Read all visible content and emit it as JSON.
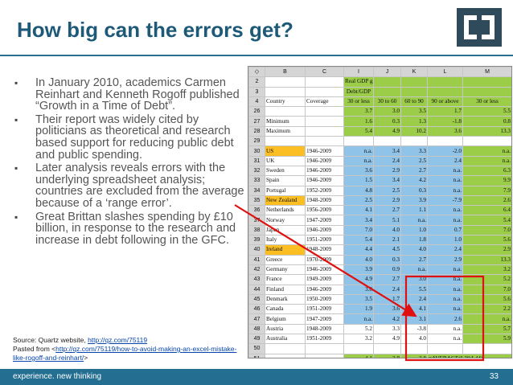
{
  "slide": {
    "title": "How big can the errors get?",
    "bullets": [
      "In January 2010, academics Carmen Reinhart and Kenneth Rogoff published “Growth in a Time of Debt”.",
      "Their report was widely cited by politicians as theoretical and research based support for reducing public debt and public spending.",
      "Later analysis reveals errors with the underlying spreadsheet analysis; countries are excluded from the average because of a ‘range error’.",
      "Great Brittan slashes spending by £10 billion, in response to the research and increase in debt following in the GFC."
    ],
    "source_line1": "Source:  Quartz website, ",
    "source_link1": "http://qz.com/75119",
    "source_line2": "Pasted from <",
    "source_link2": "http://qz.com/75119/how-to-avoid-making-an-excel-mistake-like-rogoff-and-reinhart/",
    "source_end": ">",
    "footer_tagline": "experience. new thinking",
    "page_number": "33",
    "colors": {
      "title": "#1e5a78",
      "footer": "#236e91",
      "green": "#9ccd48",
      "blue": "#8fc3e8",
      "orange": "#fbbf23",
      "red": "#e01010"
    }
  },
  "spreadsheet": {
    "col_headers": [
      "◇",
      "B",
      "C",
      "I",
      "J",
      "K",
      "L",
      "M"
    ],
    "header_rows": [
      {
        "row": "2",
        "cells": [
          "",
          "",
          "Real GDP growth",
          "",
          "",
          "",
          ""
        ]
      },
      {
        "row": "3",
        "cells": [
          "",
          "",
          "Debt/GDP",
          "",
          "",
          "",
          ""
        ]
      },
      {
        "row": "4",
        "cells": [
          "Country",
          "Coverage",
          "30 or less",
          "30 to 60",
          "60 to 90",
          "90 or above",
          "30 or less"
        ]
      }
    ],
    "stat_rows": [
      {
        "row": "26",
        "label": "",
        "i": "3.7",
        "j": "3.0",
        "k": "3.5",
        "l": "1.7",
        "m": "5.5"
      },
      {
        "row": "27",
        "label": "Minimum",
        "i": "1.6",
        "j": "0.3",
        "k": "1.3",
        "l": "-1.8",
        "m": "0.8"
      },
      {
        "row": "28",
        "label": "Maximum",
        "i": "5.4",
        "j": "4.9",
        "k": "10.2",
        "l": "3.6",
        "m": "13.3"
      },
      {
        "row": "29",
        "label": "",
        "i": "",
        "j": "",
        "k": "",
        "l": "",
        "m": ""
      }
    ],
    "country_rows": [
      {
        "row": "30",
        "country": "US",
        "coverage": "1946-2009",
        "i": "n.a.",
        "j": "3.4",
        "k": "3.3",
        "l": "-2.0",
        "m": "n.a.",
        "hl": true
      },
      {
        "row": "31",
        "country": "UK",
        "coverage": "1946-2009",
        "i": "n.a.",
        "j": "2.4",
        "k": "2.5",
        "l": "2.4",
        "m": "n.a.",
        "hl": false
      },
      {
        "row": "32",
        "country": "Sweden",
        "coverage": "1946-2009",
        "i": "3.6",
        "j": "2.9",
        "k": "2.7",
        "l": "n.a.",
        "m": "6.3",
        "hl": false
      },
      {
        "row": "33",
        "country": "Spain",
        "coverage": "1946-2009",
        "i": "1.5",
        "j": "3.4",
        "k": "4.2",
        "l": "n.a.",
        "m": "9.9",
        "hl": false
      },
      {
        "row": "34",
        "country": "Portugal",
        "coverage": "1952-2009",
        "i": "4.8",
        "j": "2.5",
        "k": "0.3",
        "l": "n.a.",
        "m": "7.9",
        "hl": false
      },
      {
        "row": "35",
        "country": "New Zealand",
        "coverage": "1948-2009",
        "i": "2.5",
        "j": "2.9",
        "k": "3.9",
        "l": "-7.9",
        "m": "2.6",
        "hl": true
      },
      {
        "row": "36",
        "country": "Netherlands",
        "coverage": "1956-2009",
        "i": "4.1",
        "j": "2.7",
        "k": "1.1",
        "l": "n.a.",
        "m": "6.4",
        "hl": false
      },
      {
        "row": "37",
        "country": "Norway",
        "coverage": "1947-2009",
        "i": "3.4",
        "j": "5.1",
        "k": "n.a.",
        "l": "n.a.",
        "m": "5.4",
        "hl": false
      },
      {
        "row": "38",
        "country": "Japan",
        "coverage": "1946-2009",
        "i": "7.0",
        "j": "4.0",
        "k": "1.0",
        "l": "0.7",
        "m": "7.0",
        "hl": false
      },
      {
        "row": "39",
        "country": "Italy",
        "coverage": "1951-2009",
        "i": "5.4",
        "j": "2.1",
        "k": "1.8",
        "l": "1.0",
        "m": "5.6",
        "hl": false
      },
      {
        "row": "40",
        "country": "Ireland",
        "coverage": "1948-2009",
        "i": "4.4",
        "j": "4.5",
        "k": "4.0",
        "l": "2.4",
        "m": "2.9",
        "hl": true
      },
      {
        "row": "41",
        "country": "Greece",
        "coverage": "1970-2009",
        "i": "4.0",
        "j": "0.3",
        "k": "2.7",
        "l": "2.9",
        "m": "13.3",
        "hl": false
      },
      {
        "row": "42",
        "country": "Germany",
        "coverage": "1946-2009",
        "i": "3.9",
        "j": "0.9",
        "k": "n.a.",
        "l": "n.a.",
        "m": "3.2",
        "hl": false
      },
      {
        "row": "43",
        "country": "France",
        "coverage": "1949-2009",
        "i": "4.9",
        "j": "2.7",
        "k": "3.0",
        "l": "n.a.",
        "m": "5.2",
        "hl": false
      },
      {
        "row": "44",
        "country": "Finland",
        "coverage": "1946-2009",
        "i": "3.8",
        "j": "2.4",
        "k": "5.5",
        "l": "n.a.",
        "m": "7.0",
        "hl": false
      },
      {
        "row": "45",
        "country": "Denmark",
        "coverage": "1950-2009",
        "i": "3.5",
        "j": "1.7",
        "k": "2.4",
        "l": "n.a.",
        "m": "5.6",
        "hl": false
      },
      {
        "row": "46",
        "country": "Canada",
        "coverage": "1951-2009",
        "i": "1.9",
        "j": "3.6",
        "k": "4.1",
        "l": "n.a.",
        "m": "2.2",
        "hl": false
      },
      {
        "row": "47",
        "country": "Belgium",
        "coverage": "1947-2009",
        "i": "n.a.",
        "j": "4.2",
        "k": "3.1",
        "l": "2.6",
        "m": "n.a.",
        "hl": false
      },
      {
        "row": "48",
        "country": "Austria",
        "coverage": "1948-2009",
        "i": "5.2",
        "j": "3.3",
        "k": "-3.8",
        "l": "n.a.",
        "m": "5.7",
        "hl": false
      },
      {
        "row": "49",
        "country": "Australia",
        "coverage": "1951-2009",
        "i": "3.2",
        "j": "4.9",
        "k": "4.0",
        "l": "n.a.",
        "m": "5.9",
        "hl": false
      },
      {
        "row": "50",
        "country": "",
        "coverage": "",
        "i": "",
        "j": "",
        "k": "",
        "l": "",
        "m": "",
        "hl": false
      }
    ],
    "total_row": {
      "row": "51",
      "i": "4.1",
      "j": "2.8",
      "k": "2.8",
      "l": "=AVERAGE(L30:L44)",
      "m": ""
    }
  }
}
